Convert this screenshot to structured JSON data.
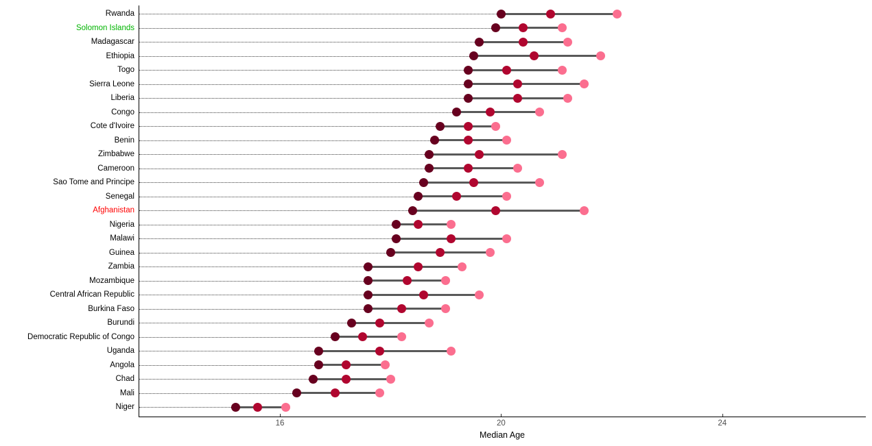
{
  "chart_data": {
    "type": "dumbbell",
    "title": "",
    "xlabel": "Median Age",
    "x_ticks": [
      16,
      20,
      24
    ],
    "xlim": [
      13.4,
      26.6
    ],
    "grid": "dotted horizontal leader line from y-axis to first point of each row",
    "legend": "none",
    "connector_color": "#595959",
    "axis_color": "#000000",
    "tick_label_color": "#4d4d4d",
    "default_label_color": "#000000",
    "series": [
      {
        "name": "dark",
        "color": "#67001f"
      },
      {
        "name": "medium",
        "color": "#b0062f"
      },
      {
        "name": "light",
        "color": "#fb6e8f"
      }
    ],
    "rows": [
      {
        "label": "Rwanda",
        "values": [
          20.0,
          20.9,
          22.1
        ]
      },
      {
        "label": "Solomon Islands",
        "values": [
          19.9,
          20.4,
          21.1
        ],
        "label_color": "#00b400"
      },
      {
        "label": "Madagascar",
        "values": [
          19.6,
          20.4,
          21.2
        ]
      },
      {
        "label": "Ethiopia",
        "values": [
          19.5,
          20.6,
          21.8
        ]
      },
      {
        "label": "Togo",
        "values": [
          19.4,
          20.1,
          21.1
        ]
      },
      {
        "label": "Sierra Leone",
        "values": [
          19.4,
          20.3,
          21.5
        ]
      },
      {
        "label": "Liberia",
        "values": [
          19.4,
          20.3,
          21.2
        ]
      },
      {
        "label": "Congo",
        "values": [
          19.2,
          19.8,
          20.7
        ]
      },
      {
        "label": "Cote d'Ivoire",
        "values": [
          18.9,
          19.4,
          19.9
        ]
      },
      {
        "label": "Benin",
        "values": [
          18.8,
          19.4,
          20.1
        ]
      },
      {
        "label": "Zimbabwe",
        "values": [
          18.7,
          19.6,
          21.1
        ]
      },
      {
        "label": "Cameroon",
        "values": [
          18.7,
          19.4,
          20.3
        ]
      },
      {
        "label": "Sao Tome and Principe",
        "values": [
          18.6,
          19.5,
          20.7
        ]
      },
      {
        "label": "Senegal",
        "values": [
          18.5,
          19.2,
          20.1
        ]
      },
      {
        "label": "Afghanistan",
        "values": [
          18.4,
          19.9,
          21.5
        ],
        "label_color": "#ff0000"
      },
      {
        "label": "Nigeria",
        "values": [
          18.1,
          18.5,
          19.1
        ]
      },
      {
        "label": "Malawi",
        "values": [
          18.1,
          19.1,
          20.1
        ]
      },
      {
        "label": "Guinea",
        "values": [
          18.0,
          18.9,
          19.8
        ]
      },
      {
        "label": "Zambia",
        "values": [
          17.6,
          18.5,
          19.3
        ]
      },
      {
        "label": "Mozambique",
        "values": [
          17.6,
          18.3,
          19.0
        ]
      },
      {
        "label": "Central African Republic",
        "values": [
          17.6,
          18.6,
          19.6
        ]
      },
      {
        "label": "Burkina Faso",
        "values": [
          17.6,
          18.2,
          19.0
        ]
      },
      {
        "label": "Burundi",
        "values": [
          17.3,
          17.8,
          18.7
        ]
      },
      {
        "label": "Democratic Republic of Congo",
        "values": [
          17.0,
          17.5,
          18.2
        ]
      },
      {
        "label": "Uganda",
        "values": [
          16.7,
          17.8,
          19.1
        ]
      },
      {
        "label": "Angola",
        "values": [
          16.7,
          17.2,
          17.9
        ]
      },
      {
        "label": "Chad",
        "values": [
          16.6,
          17.2,
          18.0
        ]
      },
      {
        "label": "Mali",
        "values": [
          16.3,
          17.0,
          17.8
        ]
      },
      {
        "label": "Niger",
        "values": [
          15.2,
          15.6,
          16.1
        ]
      }
    ]
  }
}
